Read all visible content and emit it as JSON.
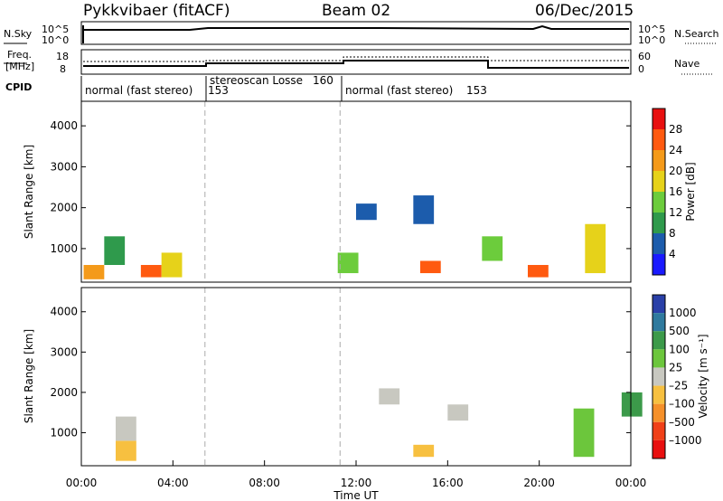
{
  "header": {
    "radar": "Pykkvibaer (fitACF)",
    "beam": "Beam 02",
    "date": "06/Dec/2015"
  },
  "strips": {
    "nsky_label": "N.Sky",
    "nsky_ticks": [
      "10^5",
      "10^0"
    ],
    "nsearch_label": "N.Search",
    "nsearch_ticks": [
      "10^5",
      "10^0"
    ],
    "freq_label_1": "Freq.",
    "freq_label_2": "[MHz]",
    "freq_ticks": [
      "18",
      "8"
    ],
    "nave_label": "Nave",
    "nave_ticks": [
      "60",
      "0"
    ],
    "cpid_label": "CPID",
    "modes": [
      {
        "label": "normal (fast stereo)",
        "id": "153"
      },
      {
        "label": "stereoscan Losse",
        "id": "160"
      },
      {
        "label": "normal (fast stereo)",
        "id": "153"
      }
    ]
  },
  "chart_data": [
    {
      "type": "heatmap",
      "ylabel": "Slant Range [km]",
      "y_ticks": [
        "1000",
        "2000",
        "3000",
        "4000"
      ],
      "ylim": [
        180,
        4600
      ],
      "colorbar_label": "Power [dB]",
      "colorbar_ticks": [
        "4",
        "8",
        "12",
        "16",
        "20",
        "24",
        "28"
      ],
      "colors": [
        "#1a1aff",
        "#1c5cac",
        "#2f9a4c",
        "#6ccc3c",
        "#e6d21a",
        "#f49a1a",
        "#ff5a10",
        "#e81010"
      ],
      "cells": [
        {
          "t": 0.1,
          "r0": 250,
          "r1": 600,
          "v": 22
        },
        {
          "t": 2.6,
          "r0": 300,
          "r1": 600,
          "v": 24
        },
        {
          "t": 1.0,
          "r0": 600,
          "r1": 1300,
          "v": 10
        },
        {
          "t": 3.5,
          "r0": 300,
          "r1": 900,
          "v": 16
        },
        {
          "t": 11.2,
          "r0": 400,
          "r1": 900,
          "v": 14
        },
        {
          "t": 12.0,
          "r0": 1700,
          "r1": 2100,
          "v": 6
        },
        {
          "t": 14.5,
          "r0": 1600,
          "r1": 2300,
          "v": 6
        },
        {
          "t": 14.8,
          "r0": 400,
          "r1": 700,
          "v": 26
        },
        {
          "t": 17.5,
          "r0": 700,
          "r1": 1300,
          "v": 14
        },
        {
          "t": 19.5,
          "r0": 300,
          "r1": 600,
          "v": 26
        },
        {
          "t": 22.0,
          "r0": 400,
          "r1": 1600,
          "v": 18
        }
      ]
    },
    {
      "type": "heatmap",
      "xlabel": "Time UT",
      "ylabel": "Slant Range [km]",
      "x_ticks": [
        "00:00",
        "04:00",
        "08:00",
        "12:00",
        "16:00",
        "20:00",
        "00:00"
      ],
      "y_ticks": [
        "1000",
        "2000",
        "3000",
        "4000"
      ],
      "ylim": [
        180,
        4600
      ],
      "colorbar_label": "Velocity [m s⁻¹]",
      "colorbar_ticks": [
        "1000",
        "500",
        "100",
        "25",
        "–25",
        "–100",
        "–500",
        "–1000"
      ],
      "colors": [
        "#2a40a8",
        "#2f7a9e",
        "#3c9a4a",
        "#6cc63c",
        "#c8c8c0",
        "#f7c040",
        "#f5902a",
        "#f04018",
        "#e81010"
      ],
      "cells": [
        {
          "t": 1.5,
          "r0": 300,
          "r1": 800,
          "v": -60
        },
        {
          "t": 1.5,
          "r0": 800,
          "r1": 1400,
          "v": 0
        },
        {
          "t": 13.0,
          "r0": 1700,
          "r1": 2100,
          "v": 0
        },
        {
          "t": 14.5,
          "r0": 400,
          "r1": 700,
          "v": -80
        },
        {
          "t": 16.0,
          "r0": 1300,
          "r1": 1700,
          "v": 0
        },
        {
          "t": 21.5,
          "r0": 400,
          "r1": 1600,
          "v": 60
        },
        {
          "t": 23.6,
          "r0": 1400,
          "r1": 2000,
          "v": 300
        }
      ]
    }
  ]
}
